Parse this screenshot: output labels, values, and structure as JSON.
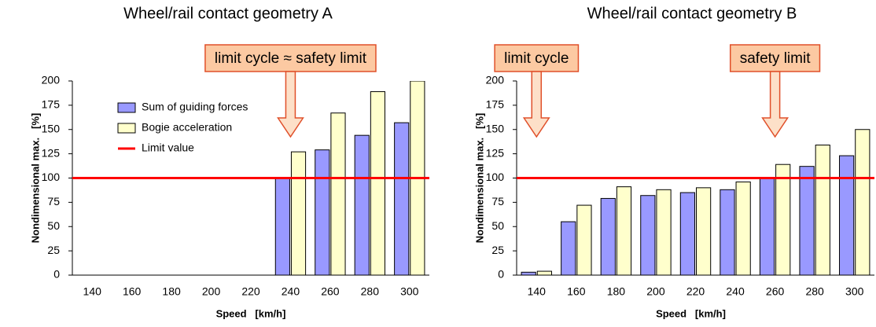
{
  "chart_data": [
    {
      "type": "bar",
      "title": "Wheel/rail contact geometry A",
      "x_label": "Speed   [km/h]",
      "y_label": "Nondimensional max.   [%]",
      "categories": [
        "140",
        "160",
        "180",
        "200",
        "220",
        "240",
        "260",
        "280",
        "300"
      ],
      "series": [
        {
          "name": "Sum of guiding forces",
          "color": "#9999ff",
          "values": [
            null,
            null,
            null,
            null,
            null,
            100,
            129,
            144,
            157
          ]
        },
        {
          "name": "Bogie acceleration",
          "color": "#ffffcc",
          "values": [
            null,
            null,
            null,
            null,
            null,
            127,
            167,
            189,
            200
          ]
        }
      ],
      "reference_line": {
        "name": "Limit value",
        "value": 100,
        "color": "#ff0000"
      },
      "ylim": [
        0,
        200
      ],
      "yticks": [
        0,
        25,
        50,
        75,
        100,
        125,
        150,
        175,
        200
      ],
      "legend": "upper left",
      "annotations": [
        {
          "text": "limit cycle ≈ safety limit",
          "x": "240"
        }
      ]
    },
    {
      "type": "bar",
      "title": "Wheel/rail contact geometry B",
      "x_label": "Speed   [km/h]",
      "y_label": "Nondimensional max.   [%]",
      "categories": [
        "140",
        "160",
        "180",
        "200",
        "220",
        "240",
        "260",
        "280",
        "300"
      ],
      "series": [
        {
          "name": "Sum of guiding forces",
          "color": "#9999ff",
          "values": [
            3,
            55,
            79,
            82,
            85,
            88,
            100,
            112,
            123
          ]
        },
        {
          "name": "Bogie acceleration",
          "color": "#ffffcc",
          "values": [
            4,
            72,
            91,
            88,
            90,
            96,
            114,
            134,
            150
          ]
        }
      ],
      "reference_line": {
        "value": 100,
        "color": "#ff0000"
      },
      "ylim": [
        0,
        200
      ],
      "yticks": [
        0,
        25,
        50,
        75,
        100,
        125,
        150,
        175,
        200
      ],
      "annotations": [
        {
          "text": "limit cycle",
          "x": "140"
        },
        {
          "text": "safety limit",
          "x": "260"
        }
      ]
    }
  ]
}
